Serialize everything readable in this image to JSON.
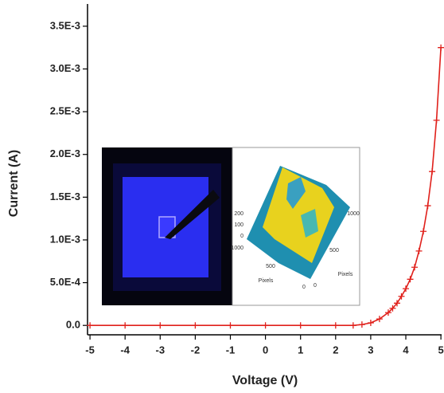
{
  "chart_data": {
    "type": "line",
    "x_label": "Voltage (V)",
    "y_label": "Current (A)",
    "x": [
      -5,
      -4,
      -3,
      -2,
      -1,
      0,
      1,
      2,
      2.5,
      2.75,
      3,
      3.25,
      3.5,
      3.625,
      3.75,
      3.875,
      4,
      4.125,
      4.25,
      4.375,
      4.5,
      4.625,
      4.75,
      4.875,
      5
    ],
    "series": [
      {
        "color": "#e0201b",
        "values": [
          0,
          0,
          0,
          0,
          0,
          0,
          0,
          0,
          0,
          1e-05,
          3e-05,
          7.5e-05,
          0.00015,
          0.0002,
          0.00026,
          0.00034,
          0.00043,
          0.00054,
          0.00068,
          0.00087,
          0.0011,
          0.0014,
          0.0018,
          0.0024,
          0.00325
        ]
      }
    ],
    "xlim": [
      -5.07,
      5.02
    ],
    "xticks": [
      -5,
      -4,
      -3,
      -2,
      -1,
      0,
      1,
      2,
      3,
      4,
      5
    ],
    "ylim": [
      -0.00011,
      0.00376
    ],
    "yticks": [
      {
        "value": 0,
        "label": "0.0"
      },
      {
        "value": 0.0005,
        "label": "5.0E-4"
      },
      {
        "value": 0.001,
        "label": "1.0E-3"
      },
      {
        "value": 0.0015,
        "label": "1.5E-3"
      },
      {
        "value": 0.002,
        "label": "2.0E-3"
      },
      {
        "value": 0.0025,
        "label": "2.5E-3"
      },
      {
        "value": 0.003,
        "label": "3.0E-3"
      },
      {
        "value": 0.0035,
        "label": "3.5E-3"
      }
    ],
    "inset": {
      "z_ticks": [
        "200",
        "100",
        "0"
      ],
      "x_ticks": [
        "1000",
        "500",
        "0"
      ],
      "y_ticks": [
        "1000",
        "500",
        "0"
      ],
      "axis_labels": [
        "Pixels",
        "Pixels"
      ]
    }
  }
}
